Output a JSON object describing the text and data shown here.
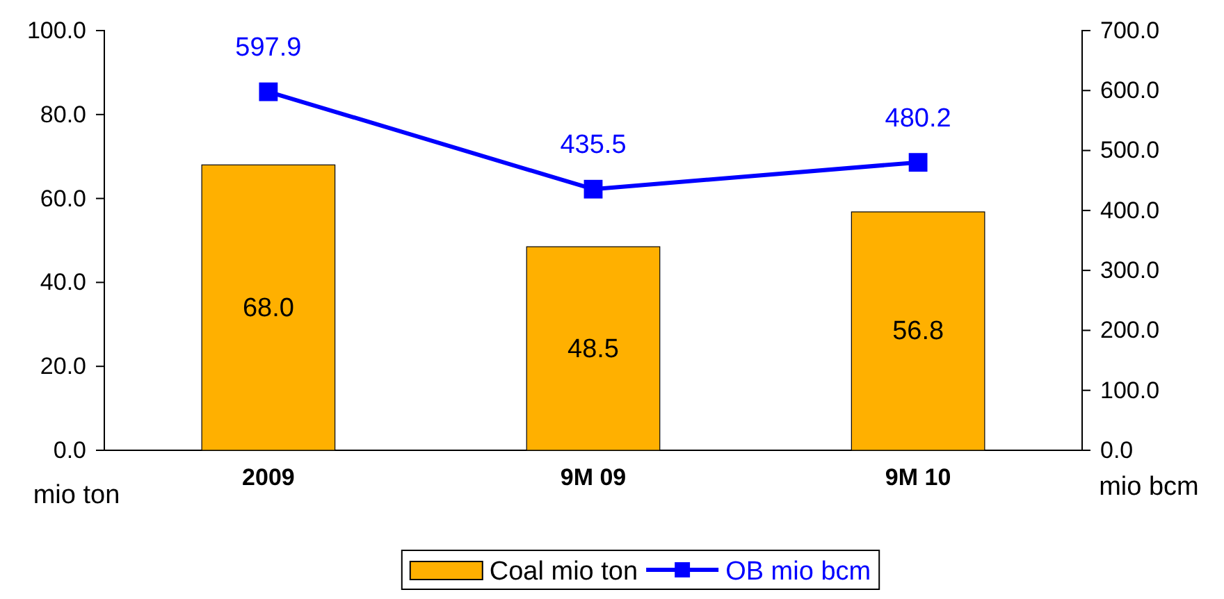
{
  "chart_data": {
    "type": "bar",
    "categories": [
      "2009",
      "9M 09",
      "9M 10"
    ],
    "series": [
      {
        "name": "Coal mio ton",
        "color": "#ffb000",
        "values": [
          68.0,
          48.5,
          56.8
        ],
        "value_labels": [
          "68.0",
          "48.5",
          "56.8"
        ]
      },
      {
        "name": "OB mio bcm",
        "type": "line",
        "axis": "y2",
        "color": "#0000ff",
        "marker": "square",
        "values": [
          597.9,
          435.5,
          480.2
        ],
        "value_labels": [
          "597.9",
          "435.5",
          "480.2"
        ]
      }
    ],
    "ylabel": "mio ton",
    "y2label": "mio bcm",
    "ylim": [
      0,
      100
    ],
    "yticks": [
      {
        "value": 0,
        "label": "0.0"
      },
      {
        "value": 20,
        "label": "20.0"
      },
      {
        "value": 40,
        "label": "40.0"
      },
      {
        "value": 60,
        "label": "60.0"
      },
      {
        "value": 80,
        "label": "80.0"
      },
      {
        "value": 100,
        "label": "100.0"
      }
    ],
    "y2lim": [
      0,
      700
    ],
    "y2ticks": [
      {
        "value": 0,
        "label": "0.0"
      },
      {
        "value": 100,
        "label": "100.0"
      },
      {
        "value": 200,
        "label": "200.0"
      },
      {
        "value": 300,
        "label": "300.0"
      },
      {
        "value": 400,
        "label": "400.0"
      },
      {
        "value": 500,
        "label": "500.0"
      },
      {
        "value": 600,
        "label": "600.0"
      },
      {
        "value": 700,
        "label": "700.0"
      }
    ],
    "data_labels": true,
    "legend": "bottom",
    "grid": false
  }
}
